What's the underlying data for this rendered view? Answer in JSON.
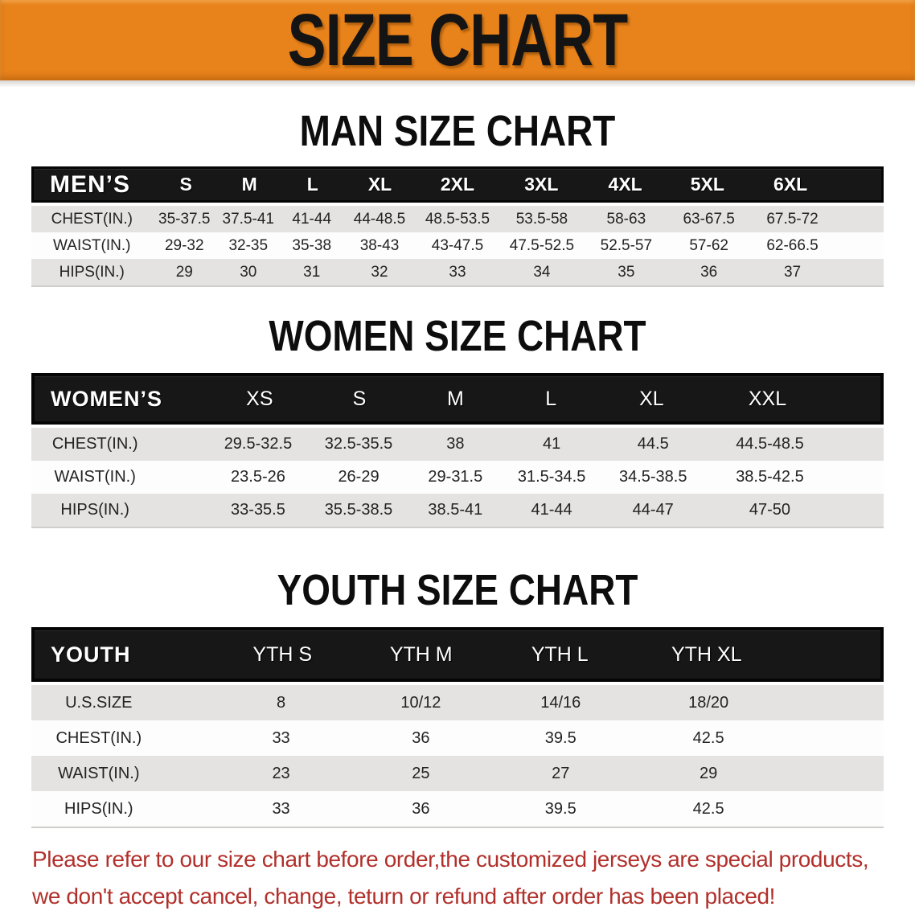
{
  "banner": {
    "title": "SIZE CHART"
  },
  "sections": [
    {
      "heading": "MAN SIZE CHART",
      "table": {
        "header": [
          "MEN’S",
          "S",
          "M",
          "L",
          "XL",
          "2XL",
          "3XL",
          "4XL",
          "5XL",
          "6XL"
        ],
        "rows": [
          [
            "CHEST(IN.)",
            "35-37.5",
            "37.5-41",
            "41-44",
            "44-48.5",
            "48.5-53.5",
            "53.5-58",
            "58-63",
            "63-67.5",
            "67.5-72"
          ],
          [
            "WAIST(IN.)",
            "29-32",
            "32-35",
            "35-38",
            "38-43",
            "43-47.5",
            "47.5-52.5",
            "52.5-57",
            "57-62",
            "62-66.5"
          ],
          [
            "HIPS(IN.)",
            "29",
            "30",
            "31",
            "32",
            "33",
            "34",
            "35",
            "36",
            "37"
          ]
        ]
      }
    },
    {
      "heading": "WOMEN SIZE CHART",
      "table": {
        "header": [
          "WOMEN’S",
          "XS",
          "S",
          "M",
          "L",
          "XL",
          "XXL"
        ],
        "rows": [
          [
            "CHEST(IN.)",
            "29.5-32.5",
            "32.5-35.5",
            "38",
            "41",
            "44.5",
            "44.5-48.5"
          ],
          [
            "WAIST(IN.)",
            "23.5-26",
            "26-29",
            "29-31.5",
            "31.5-34.5",
            "34.5-38.5",
            "38.5-42.5"
          ],
          [
            "HIPS(IN.)",
            "33-35.5",
            "35.5-38.5",
            "38.5-41",
            "41-44",
            "44-47",
            "47-50"
          ]
        ]
      }
    },
    {
      "heading": "YOUTH SIZE CHART",
      "table": {
        "header": [
          "YOUTH",
          "YTH S",
          "YTH M",
          "YTH L",
          "YTH XL"
        ],
        "rows": [
          [
            "U.S.SIZE",
            "8",
            "10/12",
            "14/16",
            "18/20"
          ],
          [
            "CHEST(IN.)",
            "33",
            "36",
            "39.5",
            "42.5"
          ],
          [
            "WAIST(IN.)",
            "23",
            "25",
            "27",
            "29"
          ],
          [
            "HIPS(IN.)",
            "33",
            "36",
            "39.5",
            "42.5"
          ]
        ]
      }
    }
  ],
  "footer": {
    "line1": "Please refer to our size chart before order,the customized jerseys are special products,",
    "line2": "we don't accept cancel, change, teturn or refund after order has been placed!"
  },
  "colors": {
    "banner_orange": "#e8821a",
    "header_black": "#171717",
    "row_gray": "#e4e3e1",
    "row_white": "#fdfdfd",
    "note_red": "#b1302b"
  }
}
